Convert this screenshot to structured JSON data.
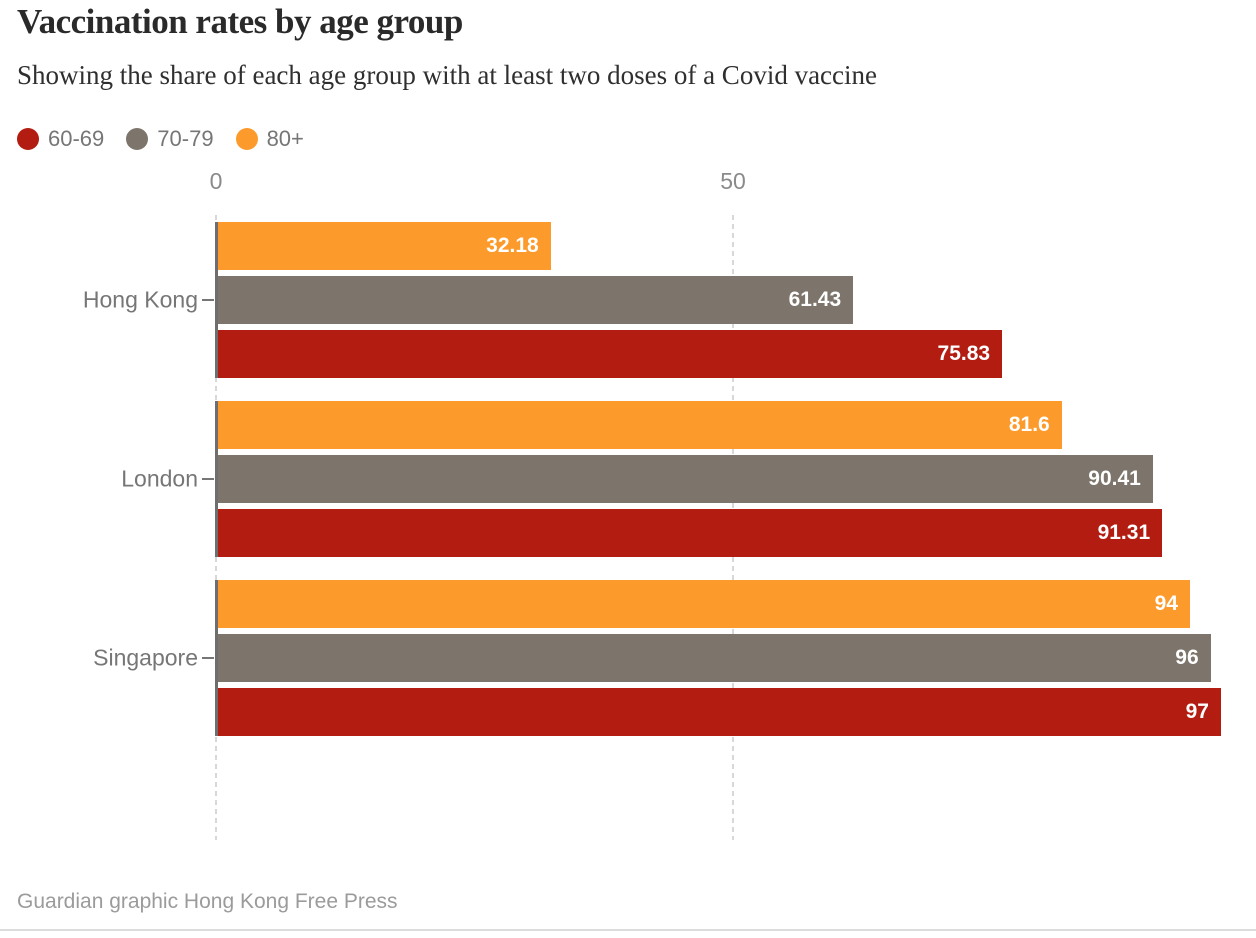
{
  "header": {
    "title": "Vaccination rates by age group",
    "subtitle": "Showing the share of each age group with at least two doses of a Covid vaccine"
  },
  "footer": {
    "credit": "Guardian graphic Hong Kong Free Press"
  },
  "chart_data": {
    "type": "bar",
    "orientation": "horizontal",
    "title": "Vaccination rates by age group",
    "subtitle": "Showing the share of each age group with at least two doses of a Covid vaccine",
    "categories": [
      "Hong Kong",
      "London",
      "Singapore"
    ],
    "series": [
      {
        "name": "60-69",
        "color": "#b21c11",
        "values": [
          75.83,
          91.31,
          97
        ]
      },
      {
        "name": "70-79",
        "color": "#7d756b",
        "values": [
          61.43,
          90.41,
          96
        ]
      },
      {
        "name": "80+",
        "color": "#fc9b2b",
        "values": [
          32.18,
          81.6,
          94
        ]
      }
    ],
    "bar_order_top_to_bottom": [
      "80+",
      "70-79",
      "60-69"
    ],
    "xticks": [
      0,
      50
    ],
    "xlim": [
      0,
      100
    ],
    "grid": "vertical-dashed",
    "legend_position": "top",
    "value_labels_shown": true
  }
}
